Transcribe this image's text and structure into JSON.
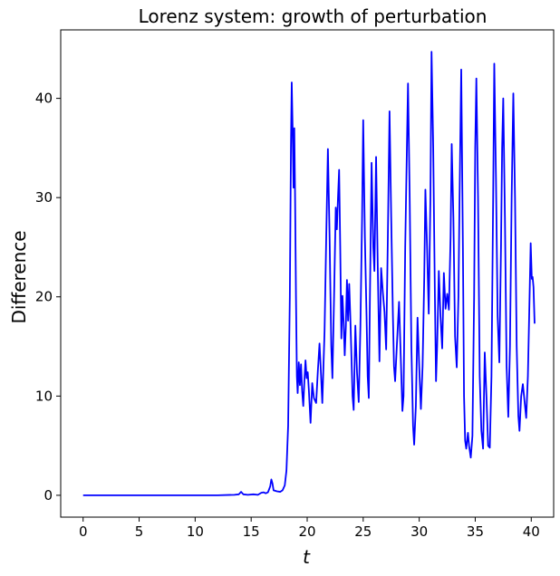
{
  "chart_data": {
    "type": "line",
    "title": "Lorenz system: growth of perturbation",
    "xlabel": "t",
    "ylabel": "Difference",
    "xlim": [
      -2.0,
      42.0
    ],
    "ylim": [
      -2.2,
      46.9
    ],
    "xticks": [
      0,
      5,
      10,
      15,
      20,
      25,
      30,
      35,
      40
    ],
    "yticks": [
      0,
      10,
      20,
      30,
      40
    ],
    "grid": false,
    "legend": "none",
    "series": [
      {
        "color": "#0000ff",
        "points": [
          [
            0,
            0
          ],
          [
            2,
            0
          ],
          [
            4,
            0
          ],
          [
            6,
            0
          ],
          [
            8,
            0
          ],
          [
            10,
            0
          ],
          [
            12,
            0
          ],
          [
            13.5,
            0.05
          ],
          [
            13.9,
            0.1
          ],
          [
            14.1,
            0.35
          ],
          [
            14.3,
            0.1
          ],
          [
            14.7,
            0.05
          ],
          [
            15.2,
            0.1
          ],
          [
            15.6,
            0.05
          ],
          [
            15.9,
            0.25
          ],
          [
            16.1,
            0.3
          ],
          [
            16.3,
            0.2
          ],
          [
            16.5,
            0.3
          ],
          [
            16.7,
            0.9
          ],
          [
            16.8,
            1.6
          ],
          [
            16.9,
            1.2
          ],
          [
            17.0,
            0.5
          ],
          [
            17.3,
            0.4
          ],
          [
            17.6,
            0.35
          ],
          [
            17.8,
            0.5
          ],
          [
            18.0,
            1.0
          ],
          [
            18.15,
            2.5
          ],
          [
            18.3,
            7
          ],
          [
            18.45,
            20
          ],
          [
            18.55,
            35
          ],
          [
            18.62,
            41.6
          ],
          [
            18.7,
            37
          ],
          [
            18.78,
            31
          ],
          [
            18.85,
            37
          ],
          [
            18.92,
            30
          ],
          [
            19.0,
            20
          ],
          [
            19.08,
            12
          ],
          [
            19.15,
            10.3
          ],
          [
            19.25,
            13.4
          ],
          [
            19.35,
            11.1
          ],
          [
            19.45,
            13.2
          ],
          [
            19.55,
            10.5
          ],
          [
            19.65,
            9.0
          ],
          [
            19.75,
            11.5
          ],
          [
            19.85,
            13.6
          ],
          [
            19.95,
            11.8
          ],
          [
            20.05,
            12.4
          ],
          [
            20.15,
            10.6
          ],
          [
            20.3,
            7.3
          ],
          [
            20.45,
            11.3
          ],
          [
            20.6,
            9.8
          ],
          [
            20.8,
            9.3
          ],
          [
            20.95,
            12.5
          ],
          [
            21.1,
            15.3
          ],
          [
            21.2,
            13.0
          ],
          [
            21.35,
            9.3
          ],
          [
            21.55,
            16.5
          ],
          [
            21.7,
            26
          ],
          [
            21.85,
            34.9
          ],
          [
            22.0,
            26
          ],
          [
            22.15,
            15
          ],
          [
            22.25,
            11.8
          ],
          [
            22.4,
            20
          ],
          [
            22.55,
            29
          ],
          [
            22.65,
            26.8
          ],
          [
            22.75,
            30
          ],
          [
            22.85,
            32.8
          ],
          [
            22.95,
            25
          ],
          [
            23.05,
            15.8
          ],
          [
            23.15,
            20.1
          ],
          [
            23.25,
            17.5
          ],
          [
            23.35,
            14.1
          ],
          [
            23.45,
            17
          ],
          [
            23.55,
            21.7
          ],
          [
            23.65,
            17.6
          ],
          [
            23.75,
            21.3
          ],
          [
            23.85,
            18
          ],
          [
            23.95,
            14
          ],
          [
            24.05,
            10
          ],
          [
            24.15,
            8.6
          ],
          [
            24.3,
            17.1
          ],
          [
            24.45,
            12.3
          ],
          [
            24.6,
            9.4
          ],
          [
            24.75,
            17
          ],
          [
            24.9,
            28
          ],
          [
            25.0,
            37.8
          ],
          [
            25.15,
            26
          ],
          [
            25.3,
            18
          ],
          [
            25.4,
            12
          ],
          [
            25.5,
            9.8
          ],
          [
            25.6,
            20
          ],
          [
            25.75,
            33.5
          ],
          [
            25.9,
            25
          ],
          [
            26.0,
            22.6
          ],
          [
            26.15,
            34.1
          ],
          [
            26.3,
            23
          ],
          [
            26.45,
            13.5
          ],
          [
            26.6,
            22.9
          ],
          [
            26.75,
            20.5
          ],
          [
            26.9,
            18.5
          ],
          [
            27.05,
            14.7
          ],
          [
            27.2,
            26
          ],
          [
            27.35,
            38.7
          ],
          [
            27.5,
            28
          ],
          [
            27.65,
            18.2
          ],
          [
            27.75,
            13
          ],
          [
            27.85,
            11.5
          ],
          [
            28.0,
            15
          ],
          [
            28.2,
            19.5
          ],
          [
            28.35,
            14
          ],
          [
            28.5,
            8.5
          ],
          [
            28.6,
            10
          ],
          [
            28.75,
            25
          ],
          [
            28.9,
            35
          ],
          [
            29.0,
            41.5
          ],
          [
            29.15,
            30
          ],
          [
            29.3,
            15
          ],
          [
            29.45,
            7
          ],
          [
            29.55,
            5.1
          ],
          [
            29.7,
            9
          ],
          [
            29.85,
            17.9
          ],
          [
            30.0,
            13
          ],
          [
            30.15,
            8.7
          ],
          [
            30.3,
            13
          ],
          [
            30.45,
            22
          ],
          [
            30.55,
            30.8
          ],
          [
            30.7,
            25
          ],
          [
            30.85,
            18.3
          ],
          [
            31.0,
            30
          ],
          [
            31.1,
            44.7
          ],
          [
            31.25,
            35
          ],
          [
            31.4,
            20
          ],
          [
            31.5,
            11.5
          ],
          [
            31.6,
            15
          ],
          [
            31.75,
            22.6
          ],
          [
            31.9,
            18
          ],
          [
            32.05,
            14.8
          ],
          [
            32.2,
            22.4
          ],
          [
            32.35,
            18.8
          ],
          [
            32.5,
            20.3
          ],
          [
            32.65,
            18.7
          ],
          [
            32.8,
            26
          ],
          [
            32.9,
            35.4
          ],
          [
            33.05,
            28
          ],
          [
            33.2,
            16
          ],
          [
            33.35,
            12.9
          ],
          [
            33.5,
            20
          ],
          [
            33.6,
            30
          ],
          [
            33.75,
            42.9
          ],
          [
            33.9,
            25
          ],
          [
            34.0,
            10
          ],
          [
            34.1,
            5.5
          ],
          [
            34.2,
            4.7
          ],
          [
            34.35,
            6.3
          ],
          [
            34.45,
            5.0
          ],
          [
            34.6,
            3.8
          ],
          [
            34.75,
            6
          ],
          [
            34.9,
            20
          ],
          [
            35.0,
            35
          ],
          [
            35.1,
            42
          ],
          [
            35.25,
            30
          ],
          [
            35.4,
            12
          ],
          [
            35.55,
            6.5
          ],
          [
            35.7,
            4.7
          ],
          [
            35.85,
            14.4
          ],
          [
            36.0,
            10
          ],
          [
            36.15,
            5
          ],
          [
            36.3,
            4.8
          ],
          [
            36.45,
            12
          ],
          [
            36.6,
            30
          ],
          [
            36.7,
            43.5
          ],
          [
            36.85,
            32
          ],
          [
            37.0,
            18
          ],
          [
            37.15,
            13.4
          ],
          [
            37.3,
            25
          ],
          [
            37.4,
            35
          ],
          [
            37.5,
            40
          ],
          [
            37.65,
            28
          ],
          [
            37.8,
            13
          ],
          [
            37.95,
            7.9
          ],
          [
            38.1,
            15
          ],
          [
            38.25,
            30
          ],
          [
            38.4,
            40.5
          ],
          [
            38.55,
            30
          ],
          [
            38.7,
            15
          ],
          [
            38.85,
            8
          ],
          [
            38.95,
            6.5
          ],
          [
            39.1,
            10
          ],
          [
            39.25,
            11.2
          ],
          [
            39.4,
            9.5
          ],
          [
            39.55,
            7.8
          ],
          [
            39.7,
            12
          ],
          [
            39.85,
            20
          ],
          [
            39.95,
            25.4
          ],
          [
            40.05,
            21.8
          ],
          [
            40.12,
            22
          ],
          [
            40.2,
            21
          ],
          [
            40.3,
            17.3
          ]
        ]
      }
    ]
  }
}
